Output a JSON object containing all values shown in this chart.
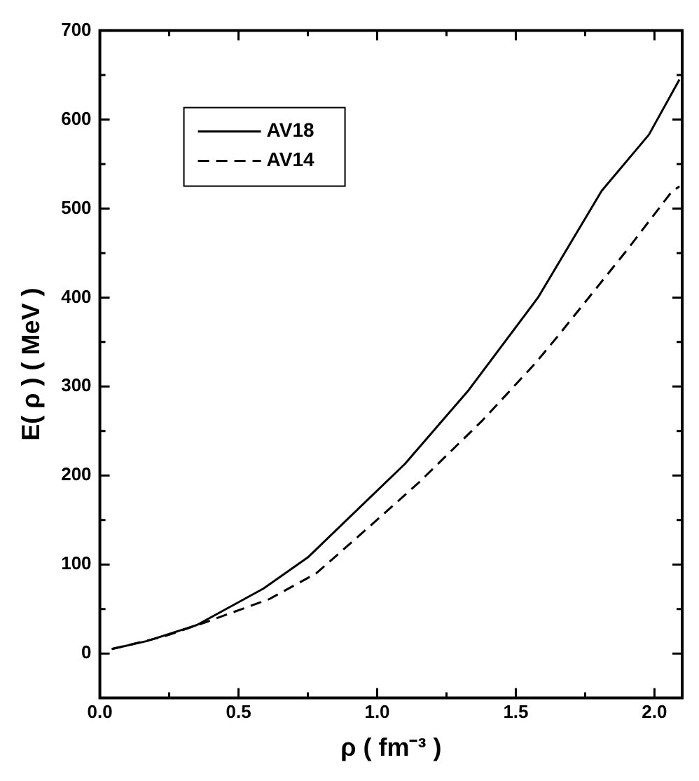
{
  "chart_data": {
    "type": "line",
    "xlabel": "ρ ( fm⁻³ )",
    "ylabel": "E( ρ ) ( MeV )",
    "xlim": [
      0,
      2.1
    ],
    "ylim": [
      -50,
      700
    ],
    "xticks": [
      {
        "value": 0,
        "label": "0.0"
      },
      {
        "value": 0.5,
        "label": "0.5"
      },
      {
        "value": 1,
        "label": "1.0"
      },
      {
        "value": 1.5,
        "label": "1.5"
      },
      {
        "value": 2,
        "label": "2.0"
      }
    ],
    "yticks": [
      0,
      100,
      200,
      300,
      400,
      500,
      600,
      700
    ],
    "legend": "top left",
    "grid": false,
    "marker": "none",
    "series": [
      {
        "name": "AV18",
        "color": "#000000",
        "line_style": "solid",
        "x": [
          0.043,
          0.17,
          0.35,
          0.59,
          0.75,
          0.9,
          1.1,
          1.33,
          1.58,
          1.81,
          1.98,
          2.09
        ],
        "values": [
          5,
          14,
          32,
          73,
          108,
          153,
          213,
          296,
          400,
          520,
          583,
          645
        ]
      },
      {
        "name": "AV14",
        "color": "#000000",
        "line_style": "dashed",
        "x": [
          0.043,
          0.23,
          0.38,
          0.61,
          0.78,
          0.97,
          1.15,
          1.38,
          1.57,
          1.65,
          1.9,
          2.06,
          2.09
        ],
        "values": [
          5,
          19,
          35,
          61,
          90,
          142,
          192,
          262,
          326,
          356,
          453,
          518,
          525
        ]
      }
    ]
  }
}
